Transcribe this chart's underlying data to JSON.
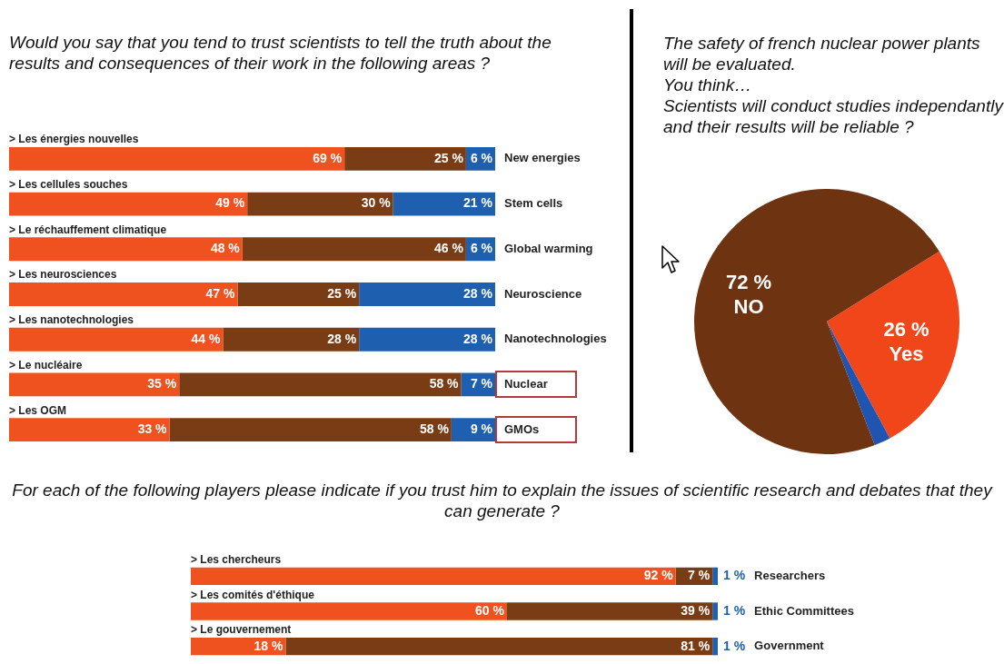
{
  "chart_data": [
    {
      "type": "bar",
      "orientation": "horizontal",
      "stacked": true,
      "title": "Would you say that you tend to trust scientists to tell the truth about the results and consequences of their work in the following areas ?",
      "categories": [
        "> Les énergies nouvelles",
        "> Les cellules souches",
        "> Le réchauffement climatique",
        "> Les neurosciences",
        "> Les nanotechnologies",
        "> Le nucléaire",
        "> Les OGM"
      ],
      "y2_categories": [
        "New energies",
        "Stem cells",
        "Global warming",
        "Neuroscience",
        "Nanotechnologies",
        "Nuclear",
        "GMOs"
      ],
      "series": [
        {
          "color": "#f0521f",
          "values": [
            69,
            49,
            48,
            47,
            44,
            35,
            33
          ],
          "value_labels": [
            "69 %",
            "49 %",
            "48 %",
            "47 %",
            "44 %",
            "35 %",
            "33 %"
          ]
        },
        {
          "color": "#7a3c14",
          "values": [
            25,
            30,
            46,
            25,
            28,
            58,
            58
          ],
          "value_labels": [
            "25 %",
            "30 %",
            "46 %",
            "25 %",
            "28 %",
            "58 %",
            "58 %"
          ]
        },
        {
          "color": "#1f5fb0",
          "values": [
            6,
            21,
            6,
            28,
            28,
            7,
            9
          ],
          "value_labels": [
            "6 %",
            "21 %",
            "6 %",
            "28 %",
            "28 %",
            "7 %",
            "9 %"
          ]
        }
      ]
    },
    {
      "type": "pie",
      "title": "The safety of french nuclear power plants will be evaluated.\nYou think…\nScientists will conduct studies independantly and their results will be reliable ?",
      "categories": [
        "Yes",
        null,
        "NO"
      ],
      "values": [
        26,
        2,
        72
      ],
      "colors": [
        "#f0461a",
        "#1f55b0",
        "#6e3412"
      ],
      "value_labels": [
        "26 %",
        null,
        "72 %"
      ]
    },
    {
      "type": "bar",
      "orientation": "horizontal",
      "stacked": true,
      "title": "For each of the following players please indicate if you trust him to explain the issues of scientific research and debates that they can generate ?",
      "categories": [
        "> Les chercheurs",
        "> Les comités d'éthique",
        "> Le gouvernement"
      ],
      "y2_categories": [
        "Researchers",
        "Ethic Committees",
        "Government"
      ],
      "series": [
        {
          "color": "#f0521f",
          "values": [
            92,
            60,
            18
          ],
          "value_labels": [
            "92 %",
            "60 %",
            "18 %"
          ]
        },
        {
          "color": "#7a3c14",
          "values": [
            7,
            39,
            81
          ],
          "value_labels": [
            "7 %",
            "39 %",
            "81 %"
          ]
        },
        {
          "color": "#1f5fb0",
          "values": [
            1,
            1,
            1
          ],
          "value_labels": [
            "1 %",
            "1 %",
            "1 %"
          ]
        }
      ]
    }
  ]
}
